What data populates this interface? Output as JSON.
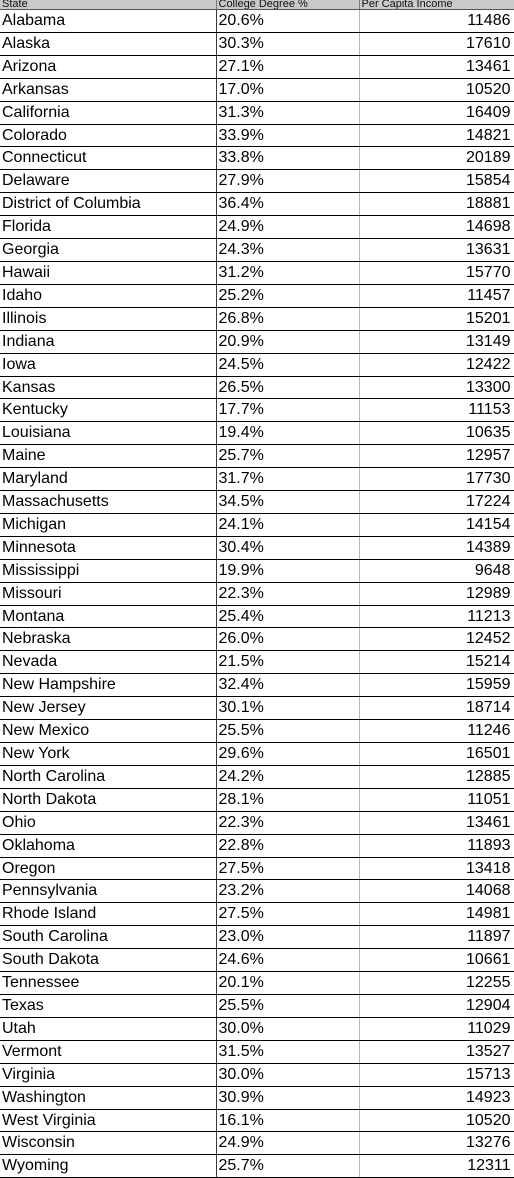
{
  "table": {
    "headers": [
      "State",
      "College Degree %",
      "Per Capita Income"
    ],
    "rows": [
      [
        "Alabama",
        "20.6%",
        "11486"
      ],
      [
        "Alaska",
        "30.3%",
        "17610"
      ],
      [
        "Arizona",
        "27.1%",
        "13461"
      ],
      [
        "Arkansas",
        "17.0%",
        "10520"
      ],
      [
        "California",
        "31.3%",
        "16409"
      ],
      [
        "Colorado",
        "33.9%",
        "14821"
      ],
      [
        "Connecticut",
        "33.8%",
        "20189"
      ],
      [
        "Delaware",
        "27.9%",
        "15854"
      ],
      [
        "District of Columbia",
        "36.4%",
        "18881"
      ],
      [
        "Florida",
        "24.9%",
        "14698"
      ],
      [
        "Georgia",
        "24.3%",
        "13631"
      ],
      [
        "Hawaii",
        "31.2%",
        "15770"
      ],
      [
        "Idaho",
        "25.2%",
        "11457"
      ],
      [
        "Illinois",
        "26.8%",
        "15201"
      ],
      [
        "Indiana",
        "20.9%",
        "13149"
      ],
      [
        "Iowa",
        "24.5%",
        "12422"
      ],
      [
        "Kansas",
        "26.5%",
        "13300"
      ],
      [
        "Kentucky",
        "17.7%",
        "11153"
      ],
      [
        "Louisiana",
        "19.4%",
        "10635"
      ],
      [
        "Maine",
        "25.7%",
        "12957"
      ],
      [
        "Maryland",
        "31.7%",
        "17730"
      ],
      [
        "Massachusetts",
        "34.5%",
        "17224"
      ],
      [
        "Michigan",
        "24.1%",
        "14154"
      ],
      [
        "Minnesota",
        "30.4%",
        "14389"
      ],
      [
        "Mississippi",
        "19.9%",
        "9648"
      ],
      [
        "Missouri",
        "22.3%",
        "12989"
      ],
      [
        "Montana",
        "25.4%",
        "11213"
      ],
      [
        "Nebraska",
        "26.0%",
        "12452"
      ],
      [
        "Nevada",
        "21.5%",
        "15214"
      ],
      [
        "New Hampshire",
        "32.4%",
        "15959"
      ],
      [
        "New Jersey",
        "30.1%",
        "18714"
      ],
      [
        "New Mexico",
        "25.5%",
        "11246"
      ],
      [
        "New York",
        "29.6%",
        "16501"
      ],
      [
        "North Carolina",
        "24.2%",
        "12885"
      ],
      [
        "North Dakota",
        "28.1%",
        "11051"
      ],
      [
        "Ohio",
        "22.3%",
        "13461"
      ],
      [
        "Oklahoma",
        "22.8%",
        "11893"
      ],
      [
        "Oregon",
        "27.5%",
        "13418"
      ],
      [
        "Pennsylvania",
        "23.2%",
        "14068"
      ],
      [
        "Rhode Island",
        "27.5%",
        "14981"
      ],
      [
        "South Carolina",
        "23.0%",
        "11897"
      ],
      [
        "South Dakota",
        "24.6%",
        "10661"
      ],
      [
        "Tennessee",
        "20.1%",
        "12255"
      ],
      [
        "Texas",
        "25.5%",
        "12904"
      ],
      [
        "Utah",
        "30.0%",
        "11029"
      ],
      [
        "Vermont",
        "31.5%",
        "13527"
      ],
      [
        "Virginia",
        "30.0%",
        "15713"
      ],
      [
        "Washington",
        "30.9%",
        "14923"
      ],
      [
        "West Virginia",
        "16.1%",
        "10520"
      ],
      [
        "Wisconsin",
        "24.9%",
        "13276"
      ],
      [
        "Wyoming",
        "25.7%",
        "12311"
      ]
    ]
  }
}
